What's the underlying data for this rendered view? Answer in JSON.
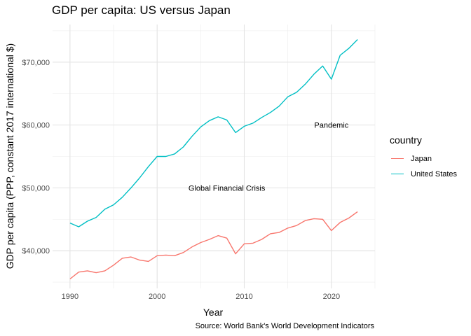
{
  "chart_data": {
    "type": "line",
    "title": "GDP per capita: US versus Japan",
    "xlabel": "Year",
    "ylabel": "GDP per capita (PPP, constant 2017 international $)",
    "caption": "Source: World Bank's World Development Indicators",
    "xlim": [
      1988,
      2025
    ],
    "ylim": [
      34000,
      76000
    ],
    "x_ticks": [
      1990,
      2000,
      2010,
      2020
    ],
    "y_ticks": [
      40000,
      50000,
      60000,
      70000
    ],
    "y_tick_labels": [
      "$40,000",
      "$50,000",
      "$60,000",
      "$70,000"
    ],
    "grid": true,
    "legend": {
      "title": "country",
      "position": "right"
    },
    "x": [
      1990,
      1991,
      1992,
      1993,
      1994,
      1995,
      1996,
      1997,
      1998,
      1999,
      2000,
      2001,
      2002,
      2003,
      2004,
      2005,
      2006,
      2007,
      2008,
      2009,
      2010,
      2011,
      2012,
      2013,
      2014,
      2015,
      2016,
      2017,
      2018,
      2019,
      2020,
      2021,
      2022,
      2023
    ],
    "series": [
      {
        "name": "Japan",
        "color": "#F8766D",
        "values": [
          35500,
          36600,
          36800,
          36500,
          36800,
          37700,
          38800,
          39000,
          38500,
          38300,
          39200,
          39300,
          39200,
          39700,
          40600,
          41300,
          41800,
          42400,
          42000,
          39500,
          41100,
          41200,
          41800,
          42700,
          42900,
          43600,
          44000,
          44800,
          45100,
          45000,
          43200,
          44500,
          45200,
          46200
        ]
      },
      {
        "name": "United States",
        "color": "#00BFC4",
        "values": [
          44400,
          43800,
          44700,
          45300,
          46600,
          47300,
          48500,
          50000,
          51600,
          53400,
          55000,
          55000,
          55400,
          56500,
          58200,
          59700,
          60700,
          61300,
          60800,
          58800,
          59800,
          60300,
          61200,
          62000,
          63000,
          64500,
          65200,
          66500,
          68100,
          69400,
          67300,
          71100,
          72200,
          73600
        ]
      }
    ],
    "annotations": [
      {
        "text": "Global Financial Crisis",
        "x": 2008,
        "y": 50000
      },
      {
        "text": "Pandemic",
        "x": 2020,
        "y": 60000
      }
    ]
  }
}
